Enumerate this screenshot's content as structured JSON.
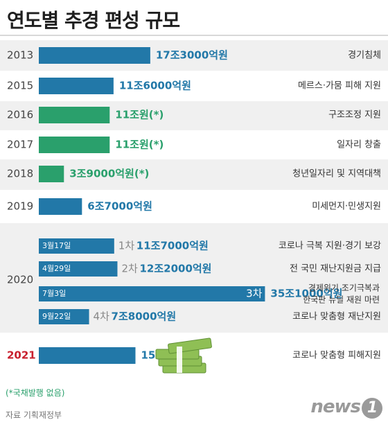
{
  "header": {
    "title": "연도별 추경 편성 규모"
  },
  "footer": {
    "note": "(*국채발행 없음)",
    "source": "자료 기획재정부",
    "logo_text": "news",
    "logo_mark": "1"
  },
  "colors": {
    "blue_bar": "#2278a8",
    "green_bar": "#2aa06c",
    "red_year": "#c8202e",
    "row_shade": "#f0f0f0",
    "money_icon": "#8fbf55"
  },
  "chart_data": {
    "type": "bar",
    "orientation": "horizontal",
    "unit": "조원",
    "rows": [
      {
        "year": "2013",
        "value": 17.3,
        "label": "17조3000억원",
        "desc": "경기침체",
        "color": "blue"
      },
      {
        "year": "2015",
        "value": 11.6,
        "label": "11조6000억원",
        "desc": "메르스·가뭄 피해 지원",
        "color": "blue"
      },
      {
        "year": "2016",
        "value": 11.0,
        "label": "11조원(*)",
        "desc": "구조조정 지원",
        "color": "green"
      },
      {
        "year": "2017",
        "value": 11.0,
        "label": "11조원(*)",
        "desc": "일자리 창출",
        "color": "green"
      },
      {
        "year": "2018",
        "value": 3.9,
        "label": "3조9000억원(*)",
        "desc": "청년일자리 및 지역대책",
        "color": "green"
      },
      {
        "year": "2019",
        "value": 6.7,
        "label": "6조7000억원",
        "desc": "미세먼지·민생지원",
        "color": "blue"
      },
      {
        "year": "2020",
        "subrows": [
          {
            "date": "3월17일",
            "order": "1차",
            "value": 11.7,
            "label": "11조7000억원",
            "desc": "코로나 극복 지원·경기 보강"
          },
          {
            "date": "4월29일",
            "order": "2차",
            "value": 12.2,
            "label": "12조2000억원",
            "desc": "전 국민 재난지원금 지급"
          },
          {
            "date": "7월3일",
            "order": "3차",
            "value": 35.1,
            "label": "35조1000억원",
            "desc": "경제위기 조기극복과 한국판 뉴딜 재원 마련"
          },
          {
            "date": "9월22일",
            "order": "4차",
            "value": 7.8,
            "label": "7조8000억원",
            "desc": "코로나 맞춤형 재난지원"
          }
        ]
      },
      {
        "year": "2021",
        "value": 15.0,
        "label": "15조원",
        "desc": "코로나 맞춤형 피해지원",
        "color": "blue",
        "highlight": true,
        "icon": "money-stack-icon"
      }
    ]
  }
}
